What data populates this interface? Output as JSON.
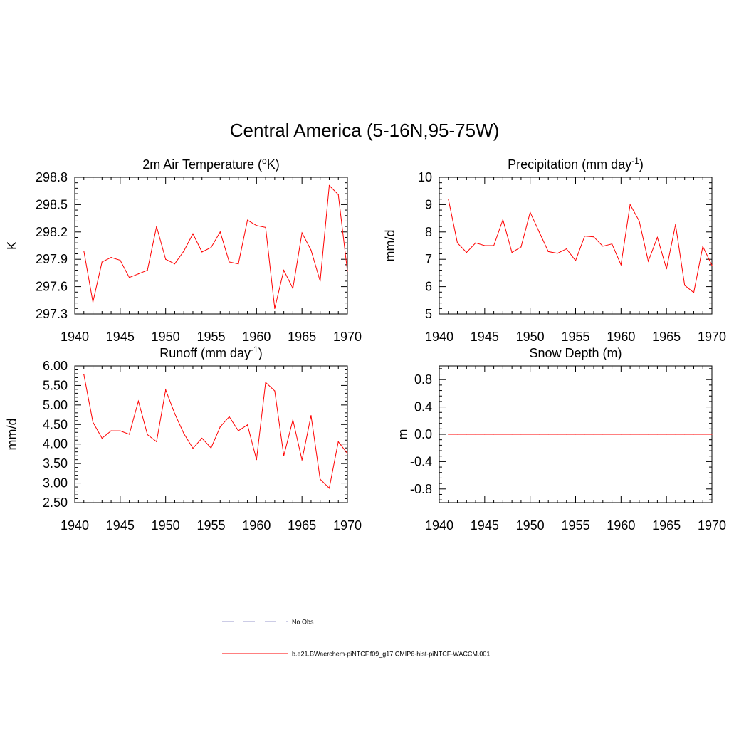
{
  "figure": {
    "title": "Central America (5-16N,95-75W)"
  },
  "legend": {
    "items": [
      {
        "label": "No Obs",
        "color": "#9999cc",
        "dash": true
      },
      {
        "label": "b.e21.BWaerchem-piNTCF.f09_g17.CMIP6-hist-piNTCF-WACCM.001",
        "color": "#ff0000",
        "dash": false
      }
    ]
  },
  "chart_data": [
    {
      "type": "line",
      "title": "2m Air Temperature (°K)",
      "title_main": "2m Air Temperature (",
      "title_sup": "o",
      "title_end": "K)",
      "ylabel": "K",
      "xlim": [
        1940,
        1970
      ],
      "ylim": [
        297.3,
        298.8
      ],
      "xticks": [
        "1940",
        "1945",
        "1950",
        "1955",
        "1960",
        "1965",
        "1970"
      ],
      "yticks": [
        "297.3",
        "297.6",
        "297.9",
        "298.2",
        "298.5",
        "298.8"
      ],
      "color": "#ff0000",
      "x": [
        1941,
        1942,
        1943,
        1944,
        1945,
        1946,
        1947,
        1948,
        1949,
        1950,
        1951,
        1952,
        1953,
        1954,
        1955,
        1956,
        1957,
        1958,
        1959,
        1960,
        1961,
        1962,
        1963,
        1964,
        1965,
        1966,
        1967,
        1968,
        1969,
        1970
      ],
      "y": [
        297.99,
        297.43,
        297.87,
        297.92,
        297.89,
        297.7,
        297.74,
        297.78,
        298.26,
        297.9,
        297.85,
        297.99,
        298.18,
        297.98,
        298.03,
        298.2,
        297.87,
        297.85,
        298.33,
        298.27,
        298.25,
        297.36,
        297.78,
        297.58,
        298.19,
        298.0,
        297.66,
        298.71,
        298.61,
        297.77
      ]
    },
    {
      "type": "line",
      "title": "Precipitation (mm day-1)",
      "title_main": "Precipitation (mm day",
      "title_sup": "-1",
      "title_end": ")",
      "ylabel": "mm/d",
      "xlim": [
        1940,
        1970
      ],
      "ylim": [
        5,
        10
      ],
      "xticks": [
        "1940",
        "1945",
        "1950",
        "1955",
        "1960",
        "1965",
        "1970"
      ],
      "yticks": [
        "5",
        "6",
        "7",
        "8",
        "9",
        "10"
      ],
      "color": "#ff0000",
      "x": [
        1941,
        1942,
        1943,
        1944,
        1945,
        1946,
        1947,
        1948,
        1949,
        1950,
        1951,
        1952,
        1953,
        1954,
        1955,
        1956,
        1957,
        1958,
        1959,
        1960,
        1961,
        1962,
        1963,
        1964,
        1965,
        1966,
        1967,
        1968,
        1969,
        1970
      ],
      "y": [
        9.2,
        7.6,
        7.25,
        7.6,
        7.5,
        7.5,
        8.45,
        7.25,
        7.45,
        8.72,
        8.0,
        7.28,
        7.22,
        7.38,
        6.95,
        7.85,
        7.82,
        7.48,
        7.56,
        6.8,
        9.0,
        8.4,
        6.93,
        7.8,
        6.65,
        8.27,
        6.05,
        5.78,
        7.47,
        6.78
      ]
    },
    {
      "type": "line",
      "title": "Runoff (mm day-1)",
      "title_main": "Runoff (mm day",
      "title_sup": "-1",
      "title_end": ")",
      "ylabel": "mm/d",
      "xlim": [
        1940,
        1970
      ],
      "ylim": [
        2.5,
        6.0
      ],
      "xticks": [
        "1940",
        "1945",
        "1950",
        "1955",
        "1960",
        "1965",
        "1970"
      ],
      "yticks": [
        "2.50",
        "3.00",
        "3.50",
        "4.00",
        "4.50",
        "5.00",
        "5.50",
        "6.00"
      ],
      "color": "#ff0000",
      "x": [
        1941,
        1942,
        1943,
        1944,
        1945,
        1946,
        1947,
        1948,
        1949,
        1950,
        1951,
        1952,
        1953,
        1954,
        1955,
        1956,
        1957,
        1958,
        1959,
        1960,
        1961,
        1962,
        1963,
        1964,
        1965,
        1966,
        1967,
        1968,
        1969,
        1970
      ],
      "y": [
        5.78,
        4.56,
        4.15,
        4.34,
        4.34,
        4.25,
        5.1,
        4.24,
        4.06,
        5.39,
        4.78,
        4.27,
        3.89,
        4.15,
        3.9,
        4.44,
        4.7,
        4.34,
        4.49,
        3.6,
        5.58,
        5.36,
        3.7,
        4.62,
        3.59,
        4.73,
        3.1,
        2.87,
        4.06,
        3.76
      ]
    },
    {
      "type": "line",
      "title": "Snow Depth (m)",
      "title_main": "Snow Depth (m)",
      "title_sup": "",
      "title_end": "",
      "ylabel": "m",
      "xlim": [
        1940,
        1970
      ],
      "ylim": [
        -1.0,
        1.0
      ],
      "xticks": [
        "1940",
        "1945",
        "1950",
        "1955",
        "1960",
        "1965",
        "1970"
      ],
      "yticks": [
        "-0.8",
        "-0.4",
        "0.0",
        "0.4",
        "0.8"
      ],
      "ytick_values": [
        -0.8,
        -0.4,
        0.0,
        0.4,
        0.8
      ],
      "color": "#ff0000",
      "x": [
        1941,
        1942,
        1943,
        1944,
        1945,
        1946,
        1947,
        1948,
        1949,
        1950,
        1951,
        1952,
        1953,
        1954,
        1955,
        1956,
        1957,
        1958,
        1959,
        1960,
        1961,
        1962,
        1963,
        1964,
        1965,
        1966,
        1967,
        1968,
        1969,
        1970
      ],
      "y": [
        0,
        0,
        0,
        0,
        0,
        0,
        0,
        0,
        0,
        0,
        0,
        0,
        0,
        0,
        0,
        0,
        0,
        0,
        0,
        0,
        0,
        0,
        0,
        0,
        0,
        0,
        0,
        0,
        0,
        0
      ]
    }
  ]
}
